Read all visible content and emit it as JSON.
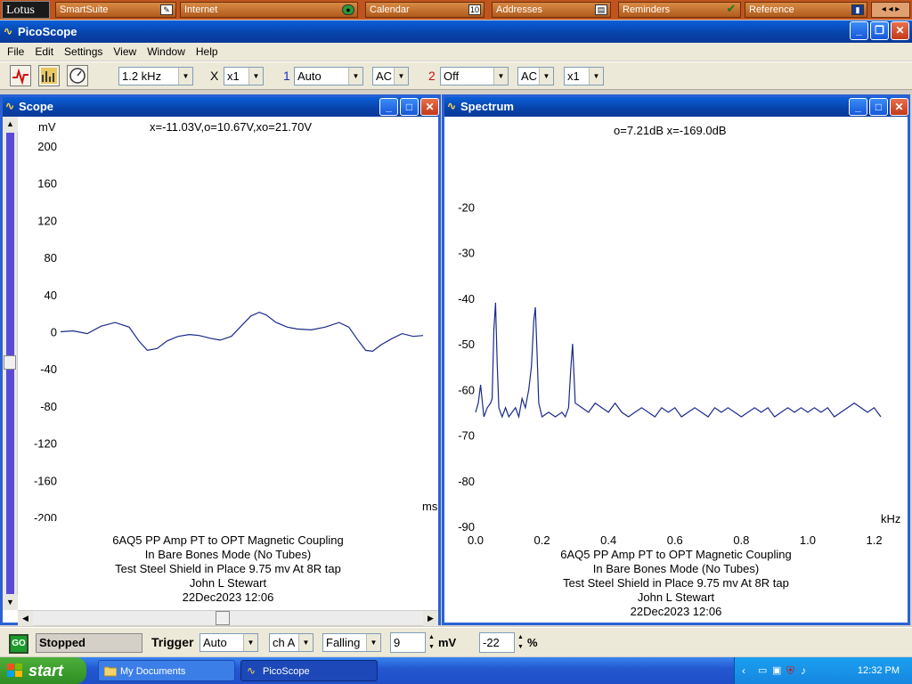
{
  "lotus": {
    "brand": "Lotus",
    "items": [
      {
        "label": "SmartSuite",
        "icon": "tool-icon"
      },
      {
        "label": "Internet",
        "icon": "globe-icon"
      },
      {
        "label": "Calendar",
        "icon": "calendar-icon"
      },
      {
        "label": "Addresses",
        "icon": "address-card-icon"
      },
      {
        "label": "Reminders",
        "icon": "checkmark-icon"
      },
      {
        "label": "Reference",
        "icon": "book-icon"
      }
    ]
  },
  "app": {
    "title": "PicoScope",
    "menu": [
      "File",
      "Edit",
      "Settings",
      "View",
      "Window",
      "Help"
    ]
  },
  "toolbar": {
    "timebase": "1.2 kHz",
    "x_label": "X",
    "x_mult": "x1",
    "ch1_num": "1",
    "ch1_range": "Auto",
    "ch1_coupling": "AC",
    "ch2_num": "2",
    "ch2_range": "Off",
    "ch2_coupling": "AC",
    "ch2_mult": "x1",
    "colors": {
      "ch1": "#1a2cc8",
      "ch2": "#d01010"
    }
  },
  "scope": {
    "title": "Scope",
    "readout": "x=-11.03V,o=10.67V,xo=21.70V",
    "y_unit": "mV",
    "x_unit": "ms",
    "caption": [
      "6AQ5 PP Amp PT to OPT Magnetic Coupling",
      "In Bare Bones Mode (No Tubes)",
      "Test Steel Shield in Place 9.75 mv At 8R tap",
      "John L Stewart",
      "22Dec2023  12:06"
    ]
  },
  "spectrum": {
    "title": "Spectrum",
    "readout": "o=7.21dB  x=-169.0dB",
    "x_unit": "kHz",
    "caption": [
      "6AQ5 PP Amp PT to OPT Magnetic Coupling",
      "In Bare Bones Mode (No Tubes)",
      "Test Steel Shield in Place 9.75 mv At 8R tap",
      "John L Stewart",
      "22Dec2023  12:06"
    ]
  },
  "chart_data": [
    {
      "type": "line",
      "xlabel": "ms",
      "ylabel": "mV",
      "xlim": [
        0.6,
        26.5
      ],
      "ylim": [
        -200,
        200
      ],
      "x_ticks": [
        "2.5",
        "5.0",
        "7.5",
        "10.0",
        "12.5",
        "15.0",
        "17.5",
        "20.0",
        "22.5",
        "25.0"
      ],
      "y_ticks": [
        "200",
        "160",
        "120",
        "80",
        "40",
        "0",
        "-40",
        "-80",
        "-120",
        "-160",
        "-200"
      ],
      "grid": false,
      "series": [
        {
          "color": "#1a2a8a",
          "x": [
            0.6,
            1.5,
            2.5,
            3.5,
            4.5,
            5.5,
            6.2,
            6.8,
            7.5,
            8.2,
            9.0,
            9.8,
            10.5,
            11.3,
            12.0,
            12.8,
            13.5,
            14.2,
            14.8,
            15.3,
            16.0,
            16.8,
            17.5,
            18.5,
            19.5,
            20.5,
            21.2,
            21.8,
            22.4,
            22.9,
            23.5,
            24.2,
            25.0,
            25.8,
            26.5
          ],
          "y": [
            0,
            1,
            -2,
            6,
            10,
            5,
            -10,
            -20,
            -18,
            -10,
            -5,
            -3,
            -4,
            -7,
            -9,
            -5,
            6,
            17,
            21,
            18,
            10,
            5,
            3,
            2,
            5,
            10,
            5,
            -8,
            -20,
            -21,
            -14,
            -8,
            -2,
            -5,
            -4
          ]
        }
      ]
    },
    {
      "type": "line",
      "xlabel": "kHz",
      "xlim": [
        0.0,
        1.22
      ],
      "ylim": [
        -90,
        -10
      ],
      "x_ticks": [
        "0.0",
        "0.2",
        "0.4",
        "0.6",
        "0.8",
        "1.0",
        "1.2"
      ],
      "y_ticks": [
        "-20",
        "-30",
        "-40",
        "-50",
        "-60",
        "-70",
        "-80",
        "-90"
      ],
      "grid": false,
      "series": [
        {
          "color": "#1a2a8a",
          "x": [
            0.0,
            0.008,
            0.015,
            0.025,
            0.035,
            0.045,
            0.05,
            0.055,
            0.06,
            0.065,
            0.07,
            0.08,
            0.09,
            0.1,
            0.11,
            0.12,
            0.13,
            0.14,
            0.15,
            0.16,
            0.168,
            0.175,
            0.18,
            0.185,
            0.19,
            0.2,
            0.22,
            0.24,
            0.26,
            0.27,
            0.28,
            0.286,
            0.292,
            0.3,
            0.32,
            0.34,
            0.36,
            0.38,
            0.4,
            0.42,
            0.44,
            0.46,
            0.48,
            0.5,
            0.52,
            0.54,
            0.56,
            0.58,
            0.6,
            0.62,
            0.64,
            0.66,
            0.68,
            0.7,
            0.72,
            0.74,
            0.76,
            0.78,
            0.8,
            0.82,
            0.84,
            0.86,
            0.88,
            0.9,
            0.92,
            0.94,
            0.96,
            0.98,
            1.0,
            1.02,
            1.04,
            1.06,
            1.08,
            1.1,
            1.12,
            1.14,
            1.16,
            1.18,
            1.2,
            1.22
          ],
          "y": [
            -65,
            -63,
            -59,
            -66,
            -64,
            -63,
            -62,
            -47,
            -41,
            -54,
            -64,
            -66,
            -64,
            -66,
            -65,
            -64,
            -66,
            -62,
            -64,
            -60,
            -55,
            -45,
            -42,
            -52,
            -63,
            -66,
            -65,
            -66,
            -65,
            -66,
            -64,
            -56,
            -50,
            -63,
            -64,
            -65,
            -63,
            -64,
            -65,
            -63,
            -65,
            -66,
            -65,
            -64,
            -65,
            -66,
            -64,
            -65,
            -64,
            -66,
            -65,
            -64,
            -65,
            -66,
            -64,
            -65,
            -64,
            -65,
            -66,
            -65,
            -64,
            -65,
            -64,
            -66,
            -65,
            -64,
            -65,
            -64,
            -65,
            -64,
            -65,
            -64,
            -66,
            -65,
            -64,
            -63,
            -64,
            -65,
            -64,
            -66
          ]
        }
      ]
    }
  ],
  "status": {
    "go": "GO",
    "state": "Stopped",
    "trigger_label": "Trigger",
    "trigger_mode": "Auto",
    "trigger_channel": "ch A",
    "trigger_edge": "Falling",
    "level_value": "9",
    "level_unit": "mV",
    "delay_value": "-22",
    "delay_unit": "%"
  },
  "taskbar": {
    "start": "start",
    "tasks": [
      {
        "label": "My Documents",
        "icon": "folder-icon"
      },
      {
        "label": "PicoScope",
        "icon": "picoscope-icon"
      }
    ],
    "clock": "12:32 PM"
  }
}
